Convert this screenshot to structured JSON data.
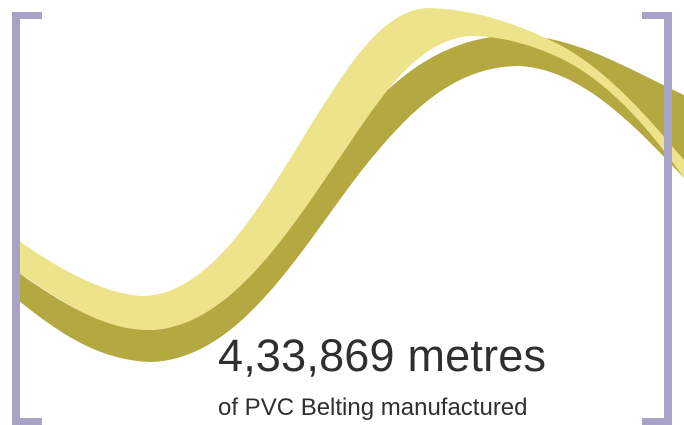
{
  "stat": {
    "value": "4,33,869 metres",
    "caption": "of PVC Belting manufactured"
  },
  "colors": {
    "ribbon_light": "#ede38a",
    "ribbon_dark": "#b3a940",
    "bracket": "#a7a3c7",
    "text": "#2f2f2f"
  }
}
